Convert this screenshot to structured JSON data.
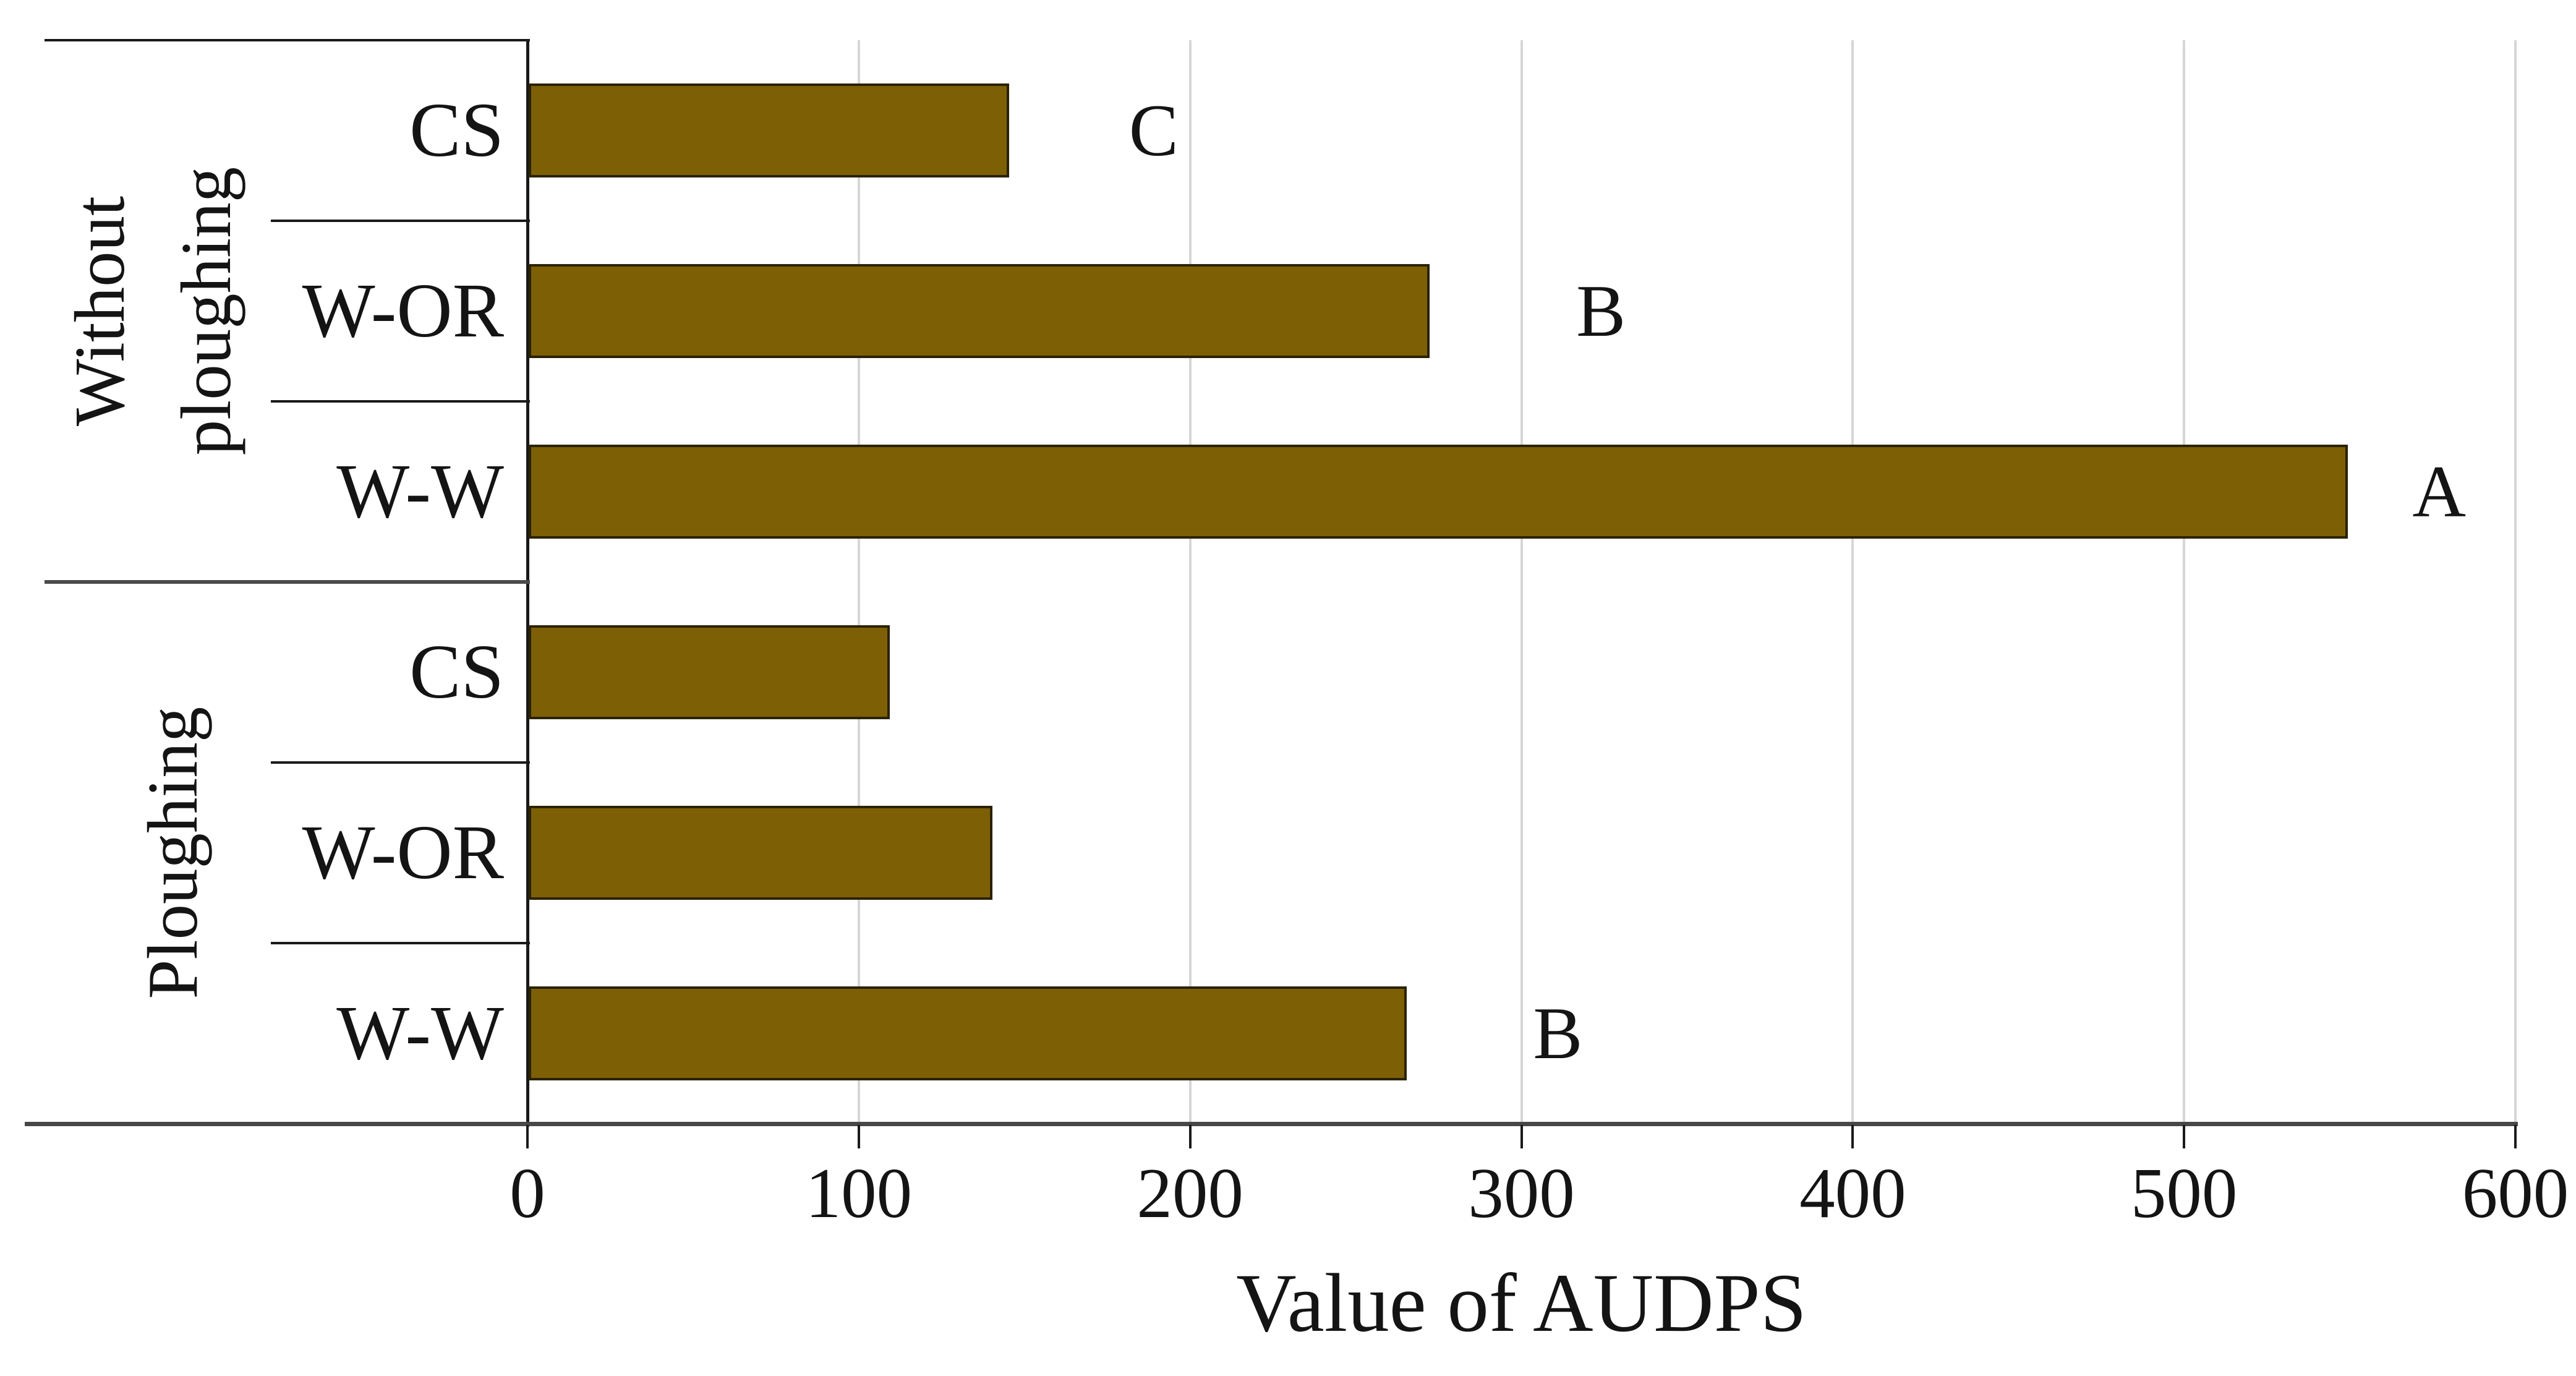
{
  "figure": {
    "type_note": "horizontal grouped bar chart",
    "background": "#ffffff"
  },
  "chart_data": {
    "type": "bar",
    "orientation": "horizontal",
    "xlabel": "Value of AUDPS",
    "ylabel": "",
    "title": "",
    "xlim": [
      0,
      600
    ],
    "x_ticks": [
      0,
      100,
      200,
      300,
      400,
      500,
      600
    ],
    "grid": "vertical light gray lines at every 100",
    "legend": "none",
    "bar_color": "#7d6005",
    "bar_border_color": "#2b2205",
    "gridline_color": "#d6d6d6",
    "axis_color": "#474747",
    "text_color": "#141414",
    "groups": [
      {
        "label": "Without ploughing",
        "label_lines": [
          "Without",
          "ploughing"
        ],
        "bars": [
          {
            "category": "CS",
            "value": 145,
            "letter": "C",
            "letter_pos": 189
          },
          {
            "category": "W-OR",
            "value": 272,
            "letter": "B",
            "letter_pos": 324
          },
          {
            "category": "W-W",
            "value": 549,
            "letter": "A",
            "letter_pos": 577
          }
        ]
      },
      {
        "label": "Ploughing",
        "label_lines": [
          "Ploughing"
        ],
        "bars": [
          {
            "category": "CS",
            "value": 109,
            "letter": "",
            "letter_pos": null
          },
          {
            "category": "W-OR",
            "value": 140,
            "letter": "",
            "letter_pos": null
          },
          {
            "category": "W-W",
            "value": 265,
            "letter": "B",
            "letter_pos": 311
          }
        ]
      }
    ]
  }
}
